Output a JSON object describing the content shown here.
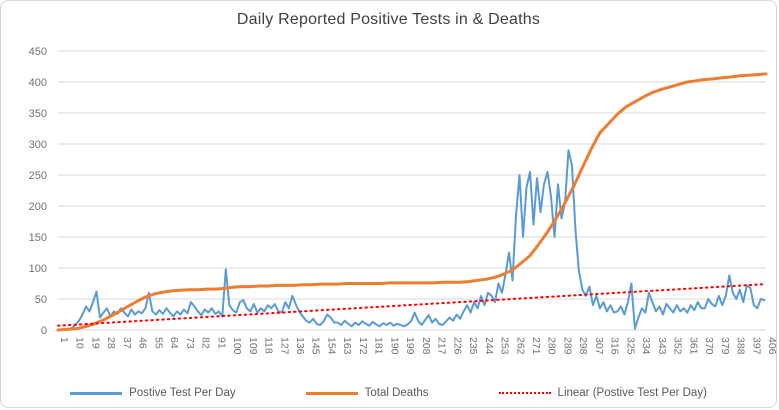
{
  "chart_data": {
    "type": "line",
    "title": "Daily Reported Positive Tests in & Deaths",
    "grid": true,
    "legend_position": "bottom",
    "x_axis": {
      "min": 1,
      "max": 406,
      "ticks": [
        1,
        10,
        19,
        28,
        37,
        46,
        55,
        64,
        73,
        82,
        91,
        100,
        109,
        118,
        127,
        136,
        145,
        154,
        163,
        172,
        181,
        190,
        199,
        208,
        217,
        226,
        235,
        244,
        253,
        262,
        271,
        280,
        289,
        298,
        307,
        316,
        325,
        334,
        343,
        352,
        361,
        370,
        379,
        388,
        397,
        406
      ]
    },
    "y_axis": {
      "min": 0,
      "max": 450,
      "step": 50,
      "ticks": [
        0,
        50,
        100,
        150,
        200,
        250,
        300,
        350,
        400,
        450
      ]
    },
    "series": [
      {
        "name": "Postive Test Per Day",
        "color": "#5B9BD5",
        "style": "solid",
        "width": 2,
        "x_start": 1,
        "x_step": 2,
        "values": [
          0,
          0,
          1,
          2,
          3,
          8,
          15,
          25,
          38,
          30,
          45,
          62,
          20,
          28,
          35,
          22,
          30,
          26,
          35,
          28,
          22,
          33,
          25,
          30,
          27,
          35,
          60,
          30,
          25,
          32,
          26,
          35,
          28,
          22,
          30,
          25,
          33,
          27,
          45,
          38,
          30,
          24,
          33,
          28,
          35,
          26,
          30,
          22,
          98,
          40,
          32,
          28,
          45,
          48,
          35,
          30,
          42,
          28,
          35,
          30,
          40,
          35,
          42,
          30,
          28,
          45,
          35,
          55,
          42,
          30,
          22,
          15,
          12,
          18,
          10,
          8,
          14,
          25,
          20,
          12,
          12,
          8,
          15,
          10,
          6,
          12,
          8,
          14,
          10,
          7,
          13,
          9,
          6,
          11,
          8,
          12,
          7,
          10,
          8,
          6,
          9,
          14,
          28,
          15,
          8,
          16,
          24,
          12,
          18,
          10,
          8,
          14,
          20,
          15,
          25,
          18,
          30,
          40,
          28,
          45,
          35,
          55,
          40,
          60,
          55,
          45,
          75,
          60,
          90,
          125,
          80,
          185,
          250,
          150,
          230,
          255,
          170,
          245,
          190,
          235,
          255,
          215,
          150,
          235,
          180,
          205,
          290,
          265,
          160,
          95,
          65,
          55,
          70,
          40,
          55,
          35,
          45,
          30,
          40,
          28,
          30,
          38,
          25,
          45,
          75,
          2,
          20,
          35,
          28,
          60,
          45,
          30,
          38,
          25,
          42,
          35,
          28,
          40,
          30,
          35,
          28,
          40,
          32,
          45,
          35,
          35,
          50,
          42,
          38,
          55,
          40,
          55,
          88,
          60,
          50,
          65,
          45,
          72,
          68,
          40,
          35,
          50,
          48
        ]
      },
      {
        "name": "Total Deaths",
        "color": "#ED7D31",
        "style": "solid",
        "width": 3,
        "x_start": 1,
        "x_step": 5,
        "values": [
          0,
          1,
          2,
          5,
          9,
          15,
          22,
          30,
          38,
          46,
          53,
          58,
          61,
          63,
          64,
          65,
          65,
          66,
          66,
          67,
          69,
          70,
          70,
          71,
          71,
          72,
          72,
          72,
          73,
          73,
          74,
          74,
          74,
          75,
          75,
          75,
          75,
          75,
          76,
          76,
          76,
          76,
          76,
          76,
          77,
          77,
          77,
          78,
          80,
          82,
          85,
          90,
          97,
          108,
          120,
          138,
          158,
          180,
          205,
          232,
          262,
          292,
          318,
          333,
          348,
          360,
          368,
          376,
          383,
          388,
          392,
          396,
          400,
          402,
          404,
          405,
          407,
          408,
          410,
          411,
          412,
          413
        ]
      },
      {
        "name": "Linear (Postive Test Per Day)",
        "color": "#FF0000",
        "style": "dotted",
        "width": 2,
        "x": [
          1,
          406
        ],
        "values": [
          7,
          74
        ]
      }
    ],
    "colors": {
      "gridline": "#D9D9D9",
      "axis_line": "#D9D9D9",
      "tick_label": "#737373",
      "title": "#404040",
      "legend_text": "#595959"
    }
  }
}
